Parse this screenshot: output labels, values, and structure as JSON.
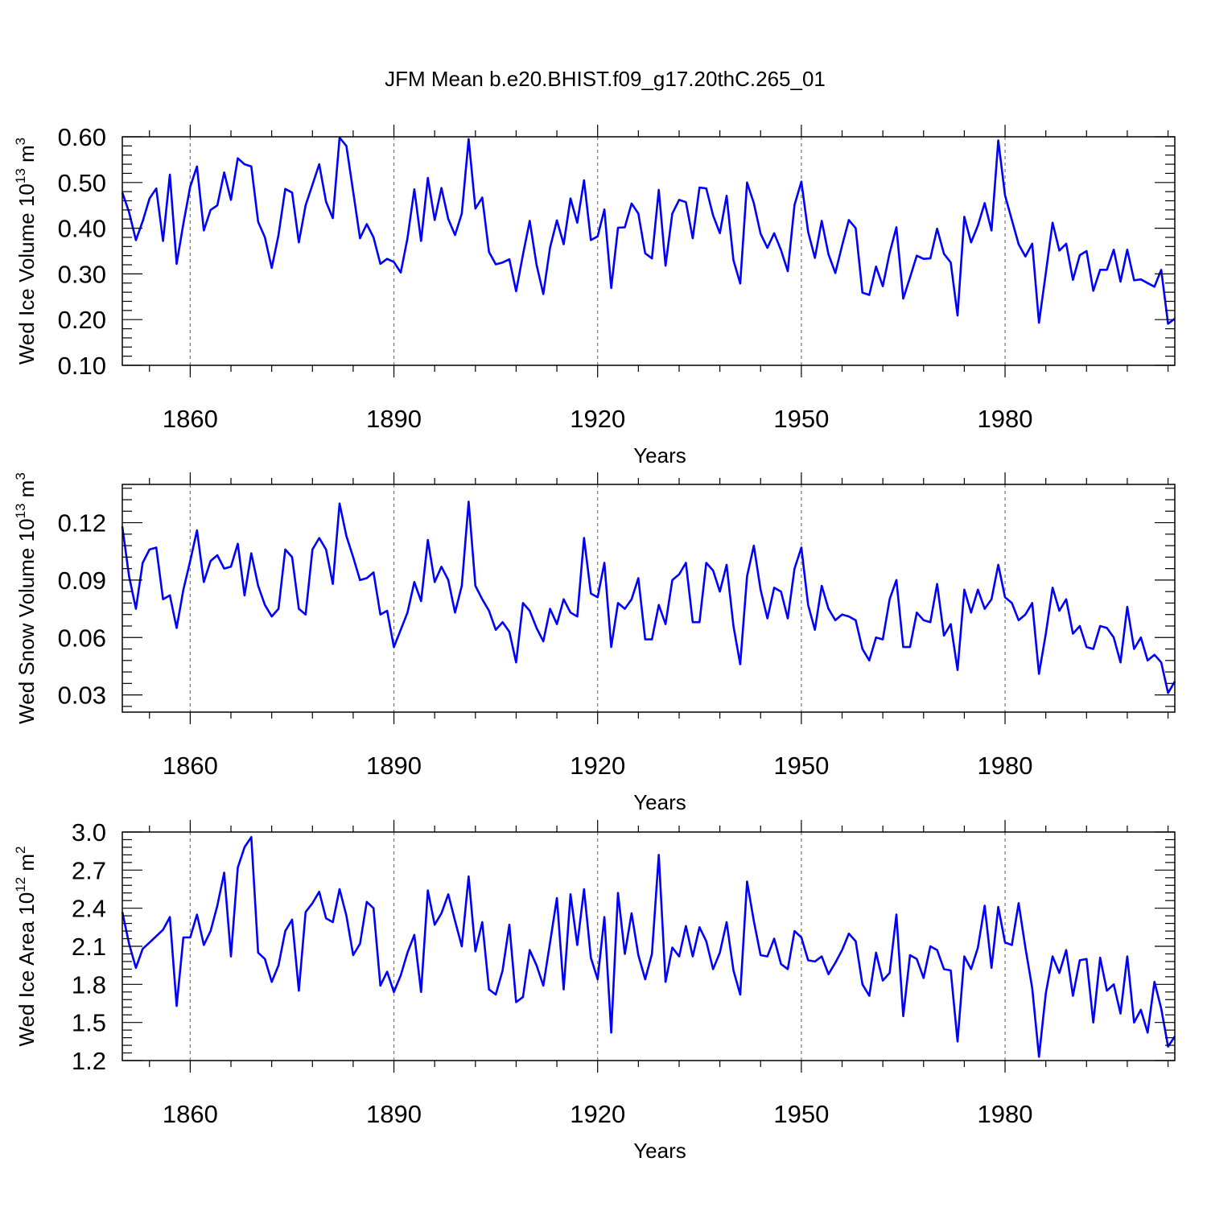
{
  "figure": {
    "title": "JFM Mean b.e20.BHIST.f09_g17.20thC.265_01"
  },
  "chart_data": [
    {
      "type": "line",
      "title": "",
      "xlabel": "Years",
      "ylabel": "Wed Ice Volume 10",
      "ylabel_sup": "13",
      "ylabel_unit": " m",
      "ylabel_unit_sup": "3",
      "xlim": [
        1850,
        2005
      ],
      "ylim": [
        0.1,
        0.6
      ],
      "yticks": [
        0.1,
        0.2,
        0.3,
        0.4,
        0.5,
        0.6
      ],
      "ytick_labels": [
        "0.10",
        "0.20",
        "0.30",
        "0.40",
        "0.50",
        "0.60"
      ],
      "xticks": [
        1860,
        1890,
        1920,
        1950,
        1980
      ],
      "xtick_labels": [
        "1860",
        "1890",
        "1920",
        "1950",
        "1980"
      ],
      "grid": "dashed vertical lines at major x ticks",
      "line_color": "#0000ff",
      "series": [
        {
          "name": "Wed Ice Volume",
          "x_start": 1850,
          "values": [
            0.478,
            0.435,
            0.374,
            0.415,
            0.465,
            0.487,
            0.372,
            0.517,
            0.322,
            0.41,
            0.491,
            0.535,
            0.395,
            0.44,
            0.45,
            0.522,
            0.462,
            0.553,
            0.54,
            0.535,
            0.414,
            0.38,
            0.313,
            0.385,
            0.486,
            0.478,
            0.369,
            0.45,
            0.495,
            0.54,
            0.458,
            0.422,
            0.598,
            0.58,
            0.48,
            0.378,
            0.409,
            0.38,
            0.322,
            0.333,
            0.326,
            0.303,
            0.378,
            0.485,
            0.372,
            0.51,
            0.418,
            0.488,
            0.42,
            0.385,
            0.432,
            0.595,
            0.443,
            0.467,
            0.348,
            0.321,
            0.325,
            0.332,
            0.262,
            0.342,
            0.416,
            0.32,
            0.256,
            0.358,
            0.417,
            0.365,
            0.465,
            0.412,
            0.505,
            0.374,
            0.382,
            0.441,
            0.269,
            0.401,
            0.402,
            0.454,
            0.432,
            0.345,
            0.334,
            0.484,
            0.318,
            0.432,
            0.462,
            0.457,
            0.378,
            0.489,
            0.487,
            0.428,
            0.389,
            0.471,
            0.33,
            0.279,
            0.5,
            0.455,
            0.388,
            0.357,
            0.389,
            0.352,
            0.306,
            0.451,
            0.502,
            0.392,
            0.335,
            0.416,
            0.343,
            0.302,
            0.362,
            0.418,
            0.4,
            0.259,
            0.254,
            0.316,
            0.273,
            0.346,
            0.402,
            0.246,
            0.292,
            0.34,
            0.333,
            0.334,
            0.399,
            0.344,
            0.325,
            0.209,
            0.425,
            0.369,
            0.406,
            0.455,
            0.395,
            0.592,
            0.472,
            0.418,
            0.365,
            0.338,
            0.366,
            0.193,
            0.302,
            0.412,
            0.351,
            0.366,
            0.287,
            0.341,
            0.35,
            0.263,
            0.309,
            0.309,
            0.353,
            0.283,
            0.353,
            0.286,
            0.288,
            0.28,
            0.272,
            0.309,
            0.191,
            0.202
          ]
        }
      ]
    },
    {
      "type": "line",
      "title": "",
      "xlabel": "Years",
      "ylabel": "Wed Snow Volume 10",
      "ylabel_sup": "13",
      "ylabel_unit": " m",
      "ylabel_unit_sup": "3",
      "xlim": [
        1850,
        2005
      ],
      "ylim": [
        0.021,
        0.14
      ],
      "yticks": [
        0.03,
        0.06,
        0.09,
        0.12
      ],
      "ytick_labels": [
        "0.03",
        "0.06",
        "0.09",
        "0.12"
      ],
      "xticks": [
        1860,
        1890,
        1920,
        1950,
        1980
      ],
      "xtick_labels": [
        "1860",
        "1890",
        "1920",
        "1950",
        "1980"
      ],
      "grid": "dashed vertical lines at major x ticks",
      "line_color": "#0000ff",
      "series": [
        {
          "name": "Wed Snow Volume",
          "x_start": 1850,
          "values": [
            0.118,
            0.092,
            0.075,
            0.099,
            0.106,
            0.107,
            0.08,
            0.082,
            0.065,
            0.085,
            0.1,
            0.116,
            0.089,
            0.1,
            0.103,
            0.096,
            0.097,
            0.109,
            0.082,
            0.104,
            0.087,
            0.077,
            0.071,
            0.075,
            0.106,
            0.102,
            0.075,
            0.072,
            0.106,
            0.112,
            0.106,
            0.088,
            0.13,
            0.113,
            0.102,
            0.09,
            0.091,
            0.094,
            0.072,
            0.074,
            0.055,
            0.064,
            0.073,
            0.089,
            0.079,
            0.111,
            0.089,
            0.097,
            0.09,
            0.073,
            0.087,
            0.131,
            0.087,
            0.08,
            0.074,
            0.064,
            0.068,
            0.063,
            0.047,
            0.078,
            0.074,
            0.065,
            0.058,
            0.075,
            0.067,
            0.08,
            0.073,
            0.071,
            0.112,
            0.083,
            0.081,
            0.099,
            0.055,
            0.078,
            0.075,
            0.08,
            0.091,
            0.059,
            0.059,
            0.077,
            0.067,
            0.09,
            0.093,
            0.099,
            0.068,
            0.068,
            0.099,
            0.095,
            0.084,
            0.098,
            0.066,
            0.046,
            0.092,
            0.108,
            0.085,
            0.07,
            0.086,
            0.084,
            0.07,
            0.096,
            0.107,
            0.077,
            0.064,
            0.087,
            0.075,
            0.069,
            0.072,
            0.071,
            0.069,
            0.054,
            0.048,
            0.06,
            0.059,
            0.08,
            0.09,
            0.055,
            0.055,
            0.073,
            0.069,
            0.068,
            0.088,
            0.061,
            0.067,
            0.043,
            0.085,
            0.073,
            0.085,
            0.075,
            0.08,
            0.098,
            0.081,
            0.078,
            0.069,
            0.072,
            0.078,
            0.041,
            0.062,
            0.086,
            0.074,
            0.08,
            0.062,
            0.066,
            0.055,
            0.054,
            0.066,
            0.065,
            0.06,
            0.047,
            0.076,
            0.054,
            0.06,
            0.048,
            0.051,
            0.047,
            0.031,
            0.037
          ]
        }
      ]
    },
    {
      "type": "line",
      "title": "",
      "xlabel": "Years",
      "ylabel": "Wed Ice Area 10",
      "ylabel_sup": "12",
      "ylabel_unit": " m",
      "ylabel_unit_sup": "2",
      "xlim": [
        1850,
        2005
      ],
      "ylim": [
        1.2,
        3.0
      ],
      "yticks": [
        1.2,
        1.5,
        1.8,
        2.1,
        2.4,
        2.7,
        3.0
      ],
      "ytick_labels": [
        "1.2",
        "1.5",
        "1.8",
        "2.1",
        "2.4",
        "2.7",
        "3.0"
      ],
      "xticks": [
        1860,
        1890,
        1920,
        1950,
        1980
      ],
      "xtick_labels": [
        "1860",
        "1890",
        "1920",
        "1950",
        "1980"
      ],
      "grid": "dashed vertical lines at major x ticks",
      "line_color": "#0000ff",
      "series": [
        {
          "name": "Wed Ice Area",
          "x_start": 1850,
          "values": [
            2.37,
            2.12,
            1.93,
            2.08,
            2.13,
            2.18,
            2.23,
            2.33,
            1.63,
            2.17,
            2.17,
            2.35,
            2.11,
            2.22,
            2.42,
            2.68,
            2.02,
            2.72,
            2.88,
            2.96,
            2.05,
            2.0,
            1.82,
            1.95,
            2.22,
            2.31,
            1.75,
            2.37,
            2.44,
            2.53,
            2.32,
            2.29,
            2.55,
            2.34,
            2.03,
            2.12,
            2.45,
            2.4,
            1.79,
            1.9,
            1.74,
            1.87,
            2.05,
            2.19,
            1.74,
            2.54,
            2.27,
            2.36,
            2.51,
            2.3,
            2.1,
            2.65,
            2.06,
            2.29,
            1.76,
            1.72,
            1.91,
            2.27,
            1.66,
            1.7,
            2.07,
            1.95,
            1.79,
            2.13,
            2.48,
            1.76,
            2.51,
            2.11,
            2.55,
            2.01,
            1.84,
            2.33,
            1.42,
            2.52,
            2.04,
            2.36,
            2.03,
            1.84,
            2.04,
            2.82,
            1.82,
            2.09,
            2.02,
            2.26,
            2.02,
            2.25,
            2.14,
            1.92,
            2.05,
            2.29,
            1.91,
            1.72,
            2.61,
            2.3,
            2.03,
            2.02,
            2.16,
            1.96,
            1.92,
            2.22,
            2.17,
            1.99,
            1.98,
            2.02,
            1.88,
            1.97,
            2.07,
            2.2,
            2.14,
            1.8,
            1.71,
            2.05,
            1.83,
            1.89,
            2.35,
            1.55,
            2.03,
            2.0,
            1.85,
            2.1,
            2.07,
            1.92,
            1.91,
            1.35,
            2.02,
            1.92,
            2.09,
            2.42,
            1.93,
            2.41,
            2.13,
            2.11,
            2.44,
            2.09,
            1.77,
            1.23,
            1.73,
            2.02,
            1.89,
            2.07,
            1.71,
            1.99,
            2.0,
            1.5,
            2.01,
            1.75,
            1.8,
            1.57,
            2.02,
            1.5,
            1.6,
            1.42,
            1.82,
            1.61,
            1.31,
            1.39
          ]
        }
      ]
    }
  ]
}
